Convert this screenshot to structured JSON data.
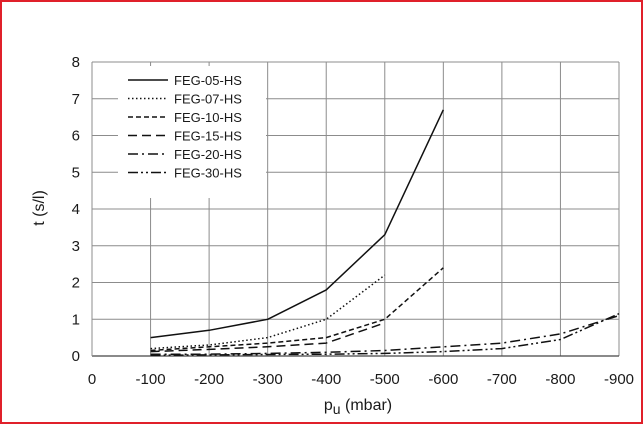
{
  "chart_data": {
    "type": "line",
    "xlabel": "p",
    "xlabel_subscript": "u",
    "xlabel_unit": " (mbar)",
    "ylabel": "t (s/l)",
    "x": [
      0,
      -100,
      -200,
      -300,
      -400,
      -500,
      -600,
      -700,
      -800,
      -900
    ],
    "x_tick_labels": [
      "0",
      "-100",
      "-200",
      "-300",
      "-400",
      "-500",
      "-600",
      "-700",
      "-800",
      "-900"
    ],
    "xlim": [
      0,
      -900
    ],
    "ylim": [
      0,
      8
    ],
    "y_ticks": [
      0,
      1,
      2,
      3,
      4,
      5,
      6,
      7,
      8
    ],
    "grid": "vertical-and-horizontal",
    "legend_position": "top-left",
    "series": [
      {
        "name": "FEG-05-HS",
        "style": "solid",
        "points": [
          [
            -100,
            0.5
          ],
          [
            -200,
            0.7
          ],
          [
            -300,
            1.0
          ],
          [
            -400,
            1.8
          ],
          [
            -500,
            3.3
          ],
          [
            -600,
            6.7
          ]
        ]
      },
      {
        "name": "FEG-07-HS",
        "style": "dotted",
        "points": [
          [
            -100,
            0.2
          ],
          [
            -200,
            0.3
          ],
          [
            -300,
            0.5
          ],
          [
            -400,
            1.0
          ],
          [
            -500,
            2.2
          ]
        ]
      },
      {
        "name": "FEG-10-HS",
        "style": "dashed-short",
        "points": [
          [
            -100,
            0.15
          ],
          [
            -200,
            0.25
          ],
          [
            -300,
            0.35
          ],
          [
            -400,
            0.5
          ],
          [
            -500,
            1.0
          ],
          [
            -600,
            2.4
          ]
        ]
      },
      {
        "name": "FEG-15-HS",
        "style": "dashed-long",
        "points": [
          [
            -100,
            0.12
          ],
          [
            -200,
            0.18
          ],
          [
            -300,
            0.25
          ],
          [
            -400,
            0.35
          ],
          [
            -500,
            0.9
          ]
        ]
      },
      {
        "name": "FEG-20-HS",
        "style": "dash-dot",
        "points": [
          [
            -100,
            0.05
          ],
          [
            -200,
            0.05
          ],
          [
            -300,
            0.07
          ],
          [
            -400,
            0.1
          ],
          [
            -500,
            0.15
          ],
          [
            -600,
            0.25
          ],
          [
            -700,
            0.35
          ],
          [
            -800,
            0.6
          ],
          [
            -900,
            1.1
          ]
        ]
      },
      {
        "name": "FEG-30-HS",
        "style": "dash-dot-dot",
        "points": [
          [
            -100,
            0.02
          ],
          [
            -200,
            0.03
          ],
          [
            -300,
            0.04
          ],
          [
            -400,
            0.05
          ],
          [
            -500,
            0.07
          ],
          [
            -600,
            0.12
          ],
          [
            -700,
            0.2
          ],
          [
            -800,
            0.45
          ],
          [
            -900,
            1.15
          ]
        ]
      }
    ]
  }
}
